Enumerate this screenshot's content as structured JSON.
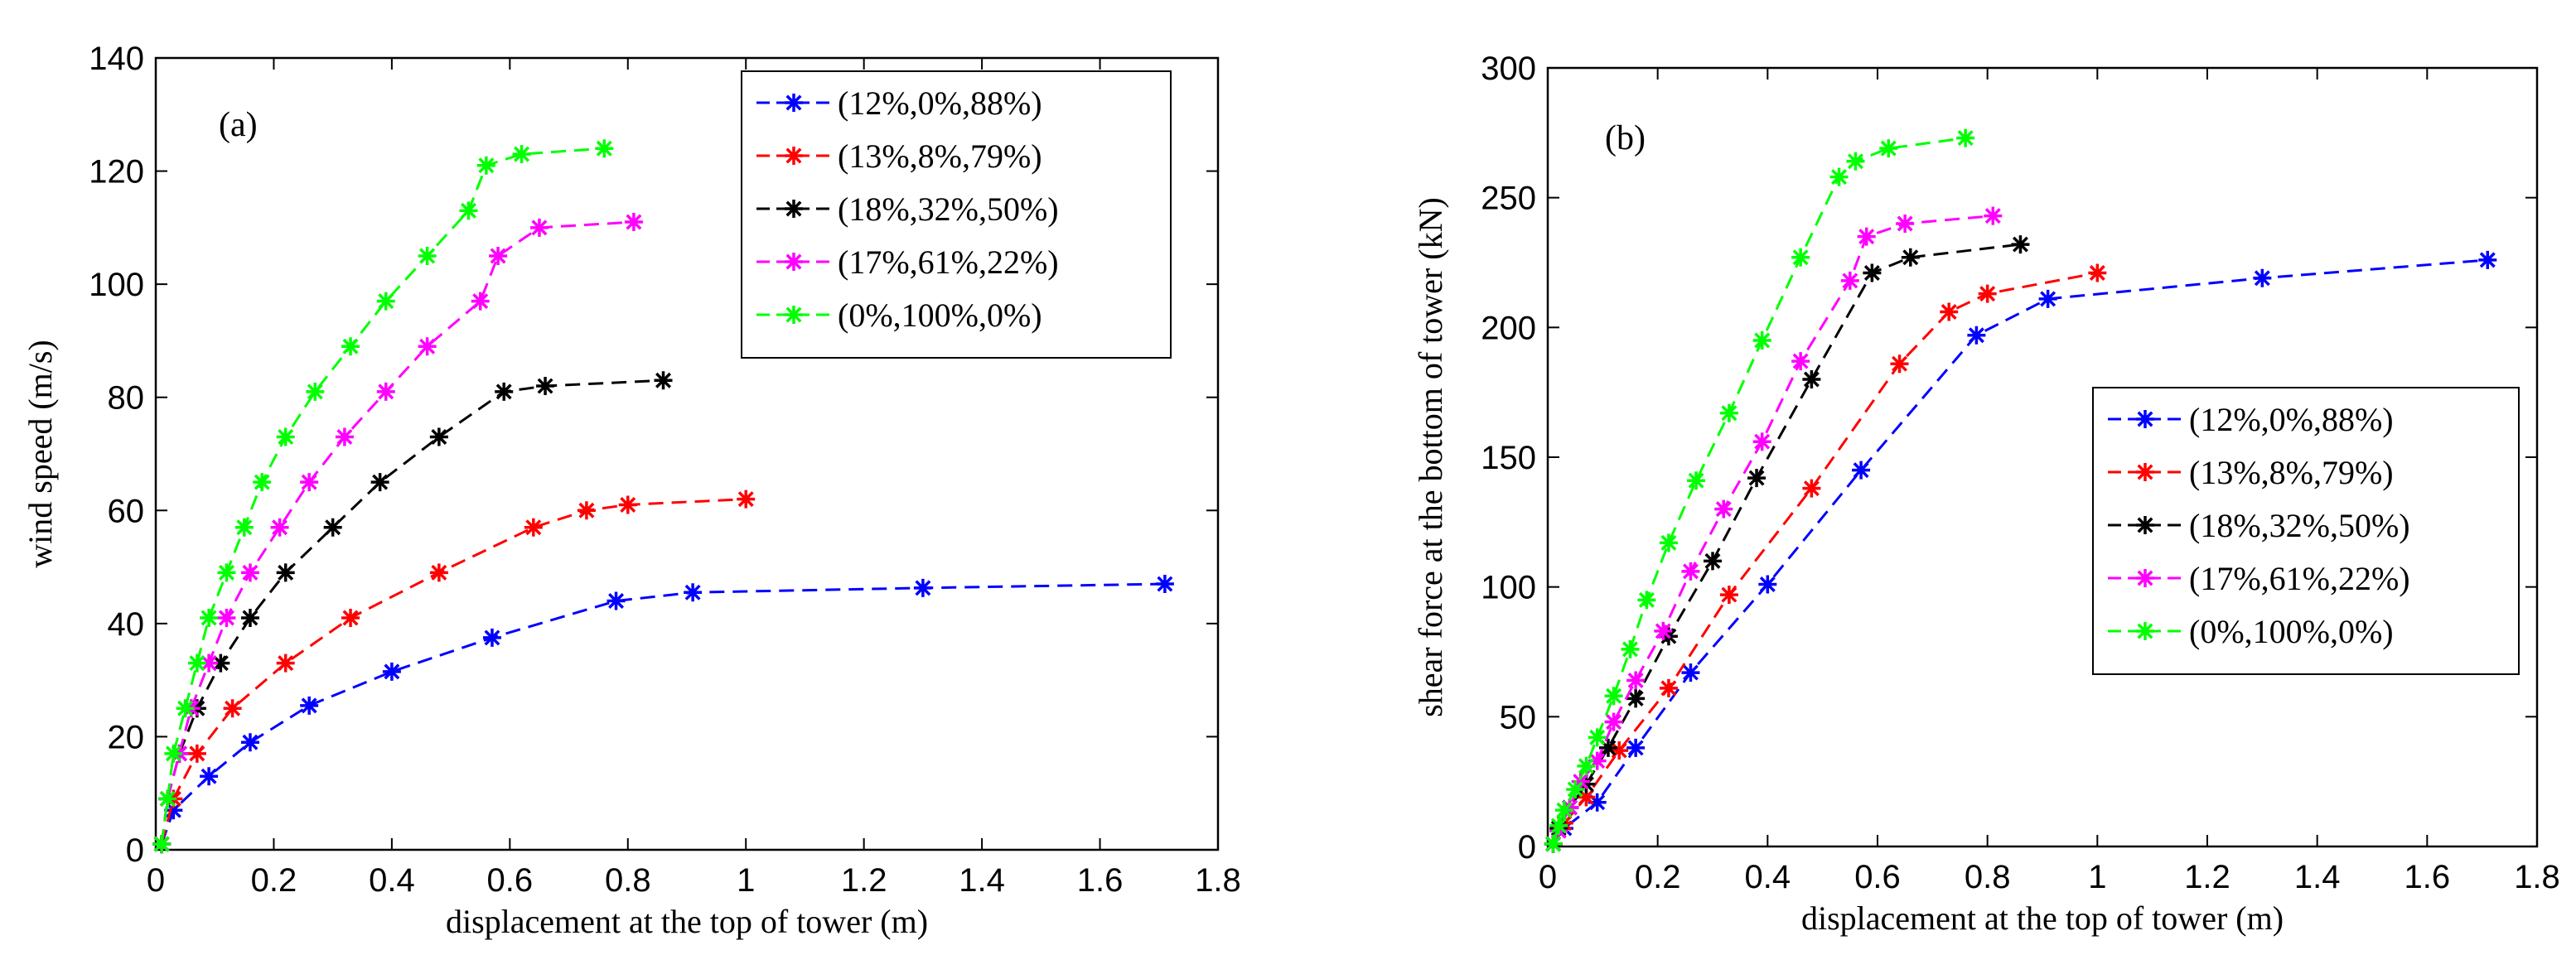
{
  "chart_data": [
    {
      "type": "line",
      "panel_label": "(a)",
      "xlabel": "displacement at the top of tower (m)",
      "ylabel": "wind speed (m/s)",
      "xlim": [
        0,
        1.8
      ],
      "ylim": [
        0,
        140
      ],
      "xticks": [
        0,
        0.2,
        0.4,
        0.6,
        0.8,
        1,
        1.2,
        1.4,
        1.6,
        1.8
      ],
      "xtick_labels": [
        "0",
        "0.2",
        "0.4",
        "0.6",
        "0.8",
        "1",
        "1.2",
        "1.4",
        "1.6",
        "1.8"
      ],
      "yticks": [
        0,
        20,
        40,
        60,
        80,
        100,
        120,
        140
      ],
      "ytick_labels": [
        "0",
        "20",
        "40",
        "60",
        "80",
        "100",
        "120",
        "140"
      ],
      "grid": false,
      "legend_position": "top-right",
      "series": [
        {
          "name": "(12%,0%,88%)",
          "color": "#0000ff",
          "marker": "star",
          "x": [
            0.01,
            0.03,
            0.09,
            0.16,
            0.26,
            0.4,
            0.57,
            0.78,
            0.91,
            1.3,
            1.71
          ],
          "y": [
            1,
            7,
            13,
            19,
            25.5,
            31.5,
            37.5,
            44,
            45.5,
            46.3,
            47
          ]
        },
        {
          "name": "(13%,8%,79%)",
          "color": "#ff0000",
          "marker": "star",
          "x": [
            0.01,
            0.03,
            0.07,
            0.13,
            0.22,
            0.33,
            0.48,
            0.64,
            0.73,
            0.8,
            1.0
          ],
          "y": [
            1,
            9,
            17,
            25,
            33,
            41,
            49,
            57,
            60,
            61,
            62
          ]
        },
        {
          "name": "(18%,32%,50%)",
          "color": "#000000",
          "marker": "star",
          "x": [
            0.01,
            0.02,
            0.04,
            0.07,
            0.11,
            0.16,
            0.22,
            0.3,
            0.38,
            0.48,
            0.59,
            0.66,
            0.86
          ],
          "y": [
            1,
            9,
            17,
            25,
            33,
            41,
            49,
            57,
            65,
            73,
            81,
            82,
            83
          ]
        },
        {
          "name": "(17%,61%,22%)",
          "color": "#ff00ff",
          "marker": "star",
          "x": [
            0.01,
            0.02,
            0.04,
            0.06,
            0.09,
            0.12,
            0.16,
            0.21,
            0.26,
            0.32,
            0.39,
            0.46,
            0.55,
            0.58,
            0.65,
            0.81
          ],
          "y": [
            1,
            9,
            17,
            25,
            33,
            41,
            49,
            57,
            65,
            73,
            81,
            89,
            97,
            105,
            110,
            111
          ]
        },
        {
          "name": "(0%,100%,0%)",
          "color": "#00ff00",
          "marker": "star",
          "x": [
            0.01,
            0.02,
            0.03,
            0.05,
            0.07,
            0.09,
            0.12,
            0.15,
            0.18,
            0.22,
            0.27,
            0.33,
            0.39,
            0.46,
            0.53,
            0.56,
            0.62,
            0.76
          ],
          "y": [
            1,
            9,
            17,
            25,
            33,
            41,
            49,
            57,
            65,
            73,
            81,
            89,
            97,
            105,
            113,
            121,
            123,
            124
          ]
        }
      ]
    },
    {
      "type": "line",
      "panel_label": "(b)",
      "xlabel": "displacement at the top of tower (m)",
      "ylabel": "shear force at the bottom of tower (kN)",
      "xlim": [
        0,
        1.8
      ],
      "ylim": [
        0,
        300
      ],
      "xticks": [
        0,
        0.2,
        0.4,
        0.6,
        0.8,
        1,
        1.2,
        1.4,
        1.6,
        1.8
      ],
      "xtick_labels": [
        "0",
        "0.2",
        "0.4",
        "0.6",
        "0.8",
        "1",
        "1.2",
        "1.4",
        "1.6",
        "1.8"
      ],
      "yticks": [
        0,
        50,
        100,
        150,
        200,
        250,
        300
      ],
      "ytick_labels": [
        "0",
        "50",
        "100",
        "150",
        "200",
        "250",
        "300"
      ],
      "grid": false,
      "legend_position": "center-right",
      "series": [
        {
          "name": "(12%,0%,88%)",
          "color": "#0000ff",
          "marker": "star",
          "x": [
            0.01,
            0.03,
            0.09,
            0.16,
            0.26,
            0.4,
            0.57,
            0.78,
            0.91,
            1.3,
            1.71
          ],
          "y": [
            1,
            7,
            17,
            38,
            67,
            101,
            145,
            197,
            211,
            219,
            226
          ]
        },
        {
          "name": "(13%,8%,79%)",
          "color": "#ff0000",
          "marker": "star",
          "x": [
            0.01,
            0.03,
            0.07,
            0.13,
            0.22,
            0.33,
            0.48,
            0.64,
            0.73,
            0.8,
            1.0
          ],
          "y": [
            1,
            9,
            19,
            37,
            61,
            97,
            138,
            186,
            206,
            213,
            221
          ]
        },
        {
          "name": "(18%,32%,50%)",
          "color": "#000000",
          "marker": "star",
          "x": [
            0.01,
            0.02,
            0.04,
            0.07,
            0.11,
            0.16,
            0.22,
            0.3,
            0.38,
            0.48,
            0.59,
            0.66,
            0.86
          ],
          "y": [
            1,
            7,
            15,
            24,
            38,
            57,
            81,
            110,
            142,
            180,
            221,
            227,
            232
          ]
        },
        {
          "name": "(17%,61%,22%)",
          "color": "#ff00ff",
          "marker": "star",
          "x": [
            0.01,
            0.02,
            0.04,
            0.06,
            0.09,
            0.12,
            0.16,
            0.21,
            0.26,
            0.32,
            0.39,
            0.46,
            0.55,
            0.58,
            0.65,
            0.81
          ],
          "y": [
            1,
            6,
            15,
            25,
            33,
            48,
            64,
            83,
            106,
            130,
            156,
            187,
            218,
            235,
            240,
            243
          ]
        },
        {
          "name": "(0%,100%,0%)",
          "color": "#00ff00",
          "marker": "star",
          "x": [
            0.01,
            0.02,
            0.03,
            0.05,
            0.07,
            0.09,
            0.12,
            0.15,
            0.18,
            0.22,
            0.27,
            0.33,
            0.39,
            0.46,
            0.53,
            0.56,
            0.62,
            0.76
          ],
          "y": [
            1,
            8,
            14,
            22,
            31,
            42,
            58,
            76,
            95,
            117,
            141,
            167,
            195,
            227,
            258,
            264,
            269,
            273
          ]
        }
      ]
    }
  ]
}
